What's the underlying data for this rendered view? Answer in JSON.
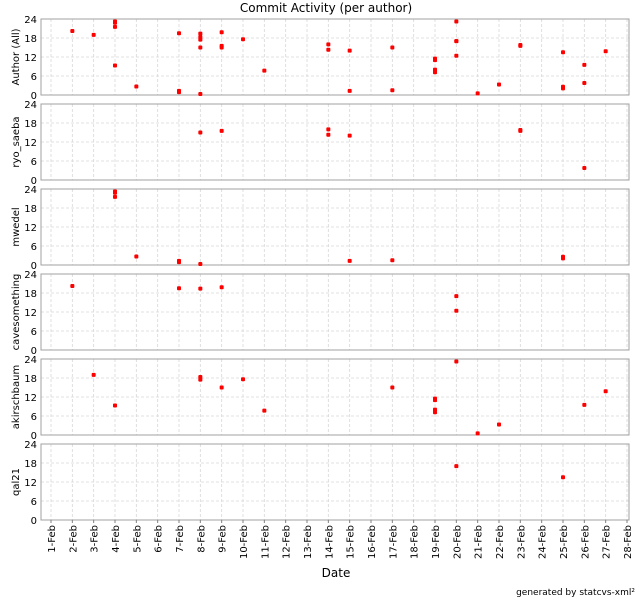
{
  "chart_data": {
    "type": "scatter",
    "title": "Commit Activity (per author)",
    "xlabel": "Date",
    "footer": "generated by statcvs-xml²",
    "x_ticks": [
      "1-Feb",
      "2-Feb",
      "3-Feb",
      "4-Feb",
      "5-Feb",
      "6-Feb",
      "7-Feb",
      "8-Feb",
      "9-Feb",
      "10-Feb",
      "11-Feb",
      "12-Feb",
      "13-Feb",
      "14-Feb",
      "15-Feb",
      "16-Feb",
      "17-Feb",
      "18-Feb",
      "19-Feb",
      "20-Feb",
      "21-Feb",
      "22-Feb",
      "23-Feb",
      "24-Feb",
      "25-Feb",
      "26-Feb",
      "27-Feb",
      "28-Feb"
    ],
    "xlim": [
      1,
      28
    ],
    "ylim": [
      0,
      24
    ],
    "y_ticks": [
      "0",
      "6",
      "12",
      "18",
      "24"
    ],
    "grid": true,
    "point_color": "#ff0000",
    "panels": [
      {
        "ylabel": "Author (All)",
        "aggregate": true,
        "points": []
      },
      {
        "ylabel": "ryo_saeba",
        "points": [
          [
            8,
            15
          ],
          [
            9,
            15.5
          ],
          [
            14,
            16
          ],
          [
            14,
            14.3
          ],
          [
            15,
            14
          ],
          [
            23,
            15.8
          ],
          [
            23,
            15.5
          ],
          [
            26,
            3.8
          ]
        ]
      },
      {
        "ylabel": "mwedel",
        "points": [
          [
            4,
            23.2
          ],
          [
            4,
            22.8
          ],
          [
            4,
            21.5
          ],
          [
            5,
            2.7
          ],
          [
            7,
            1.3
          ],
          [
            7,
            0.9
          ],
          [
            8,
            0.3
          ],
          [
            15,
            1.3
          ],
          [
            17,
            1.5
          ],
          [
            25,
            2.6
          ],
          [
            25,
            2.1
          ]
        ]
      },
      {
        "ylabel": "cavesomething",
        "points": [
          [
            2,
            20.2
          ],
          [
            7,
            19.5
          ],
          [
            8,
            19.4
          ],
          [
            9,
            19.8
          ],
          [
            20,
            17
          ],
          [
            20,
            12.4
          ]
        ]
      },
      {
        "ylabel": "akirschbaum",
        "points": [
          [
            3,
            19
          ],
          [
            4,
            9.3
          ],
          [
            8,
            18.3
          ],
          [
            8,
            17.5
          ],
          [
            9,
            15
          ],
          [
            10,
            17.6
          ],
          [
            11,
            7.7
          ],
          [
            17,
            15
          ],
          [
            19,
            11.5
          ],
          [
            19,
            11
          ],
          [
            19,
            8
          ],
          [
            19,
            7.2
          ],
          [
            20,
            23.2
          ],
          [
            21,
            0.5
          ],
          [
            22,
            3.3
          ],
          [
            26,
            9.5
          ],
          [
            27,
            13.8
          ]
        ]
      },
      {
        "ylabel": "qal21",
        "points": [
          [
            20,
            17
          ],
          [
            25,
            13.5
          ]
        ]
      }
    ]
  }
}
